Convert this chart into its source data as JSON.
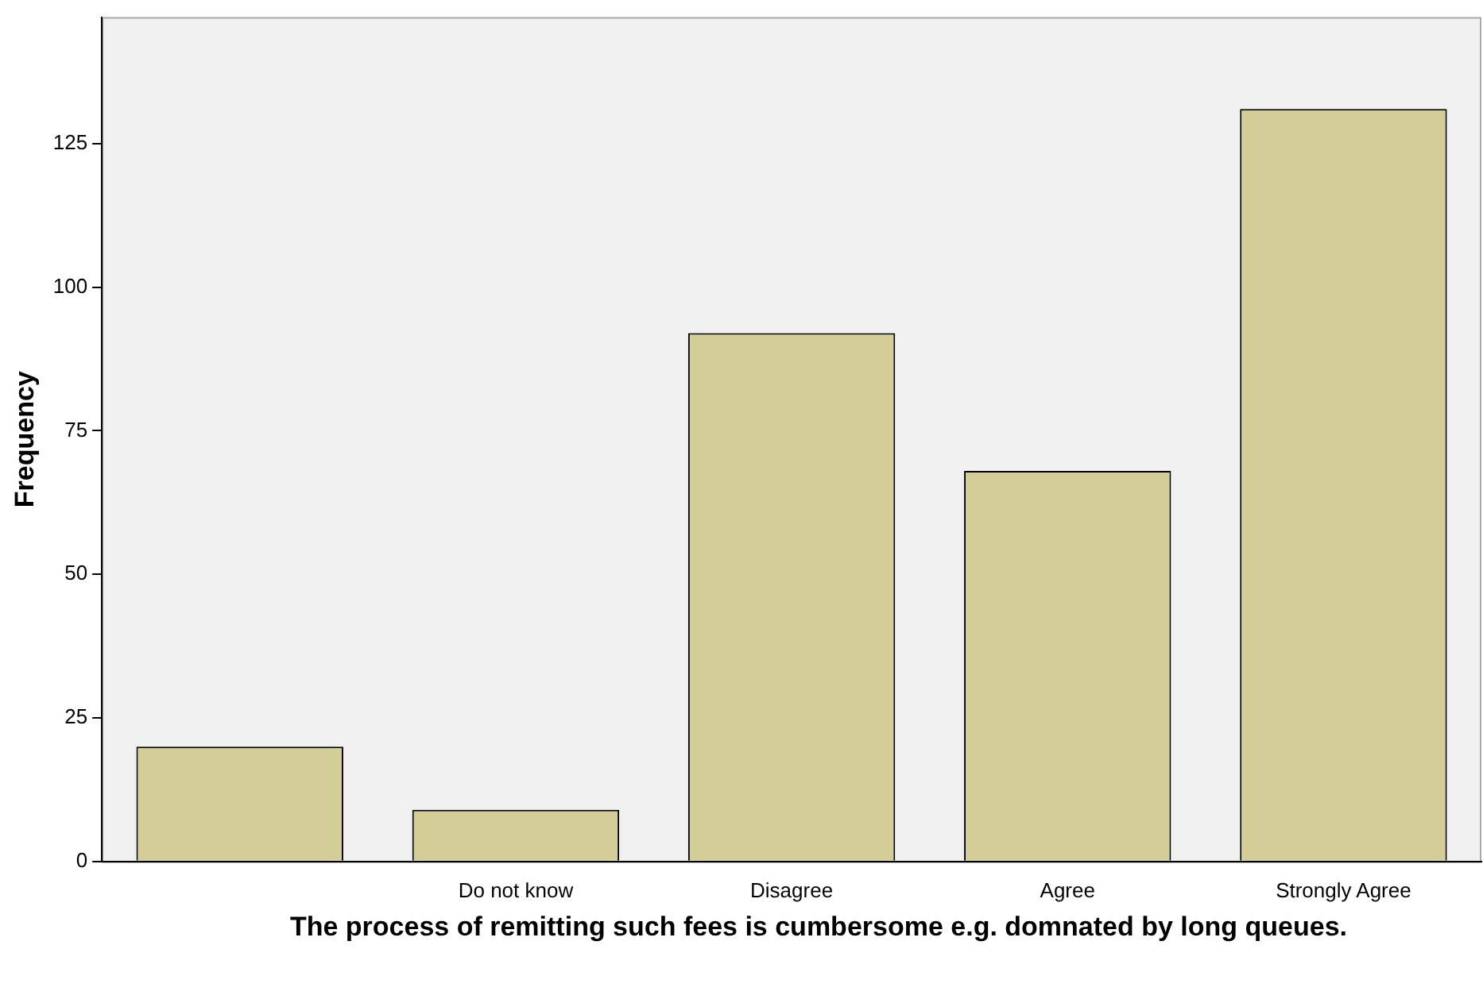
{
  "chart_data": {
    "type": "bar",
    "xlabel": "The process of remitting such fees is cumbersome e.g. domnated by long queues.",
    "ylabel": "Frequency",
    "categories": [
      null,
      "Do not know",
      "Disagree",
      "Agree",
      "Strongly Agree"
    ],
    "values": [
      20,
      9,
      92,
      68,
      131
    ],
    "color": "#d3ce97",
    "ylim": [
      0,
      147
    ],
    "yticks": [
      0,
      25,
      50,
      75,
      100,
      125
    ],
    "grid": false,
    "legend": false
  }
}
